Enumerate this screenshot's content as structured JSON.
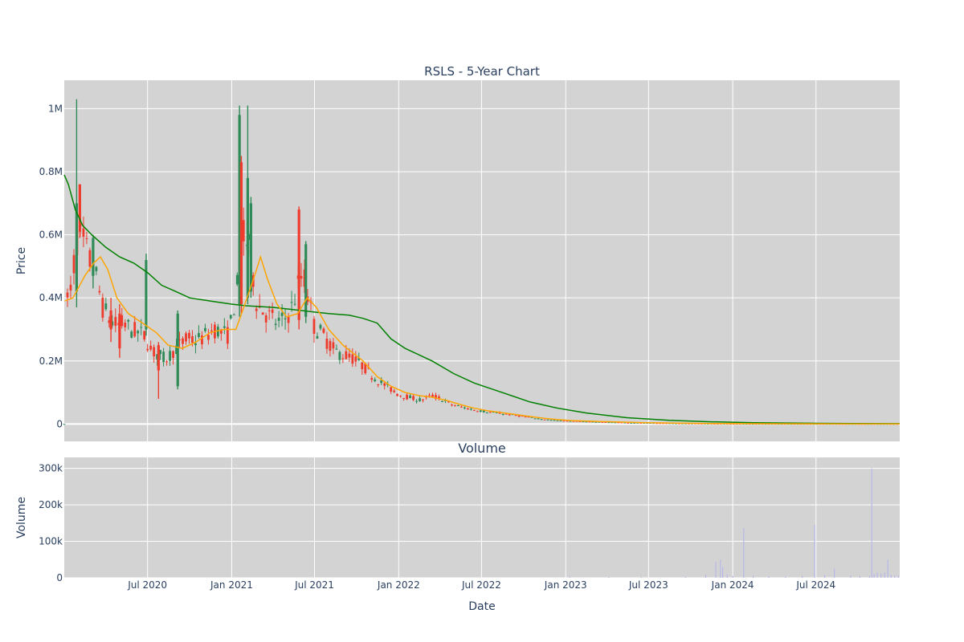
{
  "chart_data": [
    {
      "type": "candlestick",
      "title": "RSLS - 5-Year Chart",
      "ylabel": "Price",
      "ylim": [
        -55000,
        1090000
      ],
      "yticks": [
        {
          "value": 0,
          "label": "0"
        },
        {
          "value": 200000,
          "label": "0.2M"
        },
        {
          "value": 400000,
          "label": "0.4M"
        },
        {
          "value": 600000,
          "label": "0.6M"
        },
        {
          "value": 800000,
          "label": "0.8M"
        },
        {
          "value": 1000000,
          "label": "1M"
        }
      ],
      "grid": true,
      "colors": {
        "up": "#2e8b57",
        "down": "#ef3b2c",
        "ma_short": "#ffa500",
        "ma_long": "#008000",
        "plot_bg": "#d3d3d3"
      },
      "price_points": [
        [
          "2020-01-02",
          380000
        ],
        [
          "2020-01-15",
          420000
        ],
        [
          "2020-01-30",
          600000
        ],
        [
          "2020-02-10",
          580000
        ],
        [
          "2020-02-25",
          520000
        ],
        [
          "2020-03-10",
          470000
        ],
        [
          "2020-03-25",
          370000
        ],
        [
          "2020-04-10",
          330000
        ],
        [
          "2020-04-25",
          310000
        ],
        [
          "2020-05-10",
          320000
        ],
        [
          "2020-05-25",
          300000
        ],
        [
          "2020-06-10",
          290000
        ],
        [
          "2020-06-25",
          280000
        ],
        [
          "2020-07-10",
          230000
        ],
        [
          "2020-07-25",
          220000
        ],
        [
          "2020-08-10",
          205000
        ],
        [
          "2020-08-25",
          230000
        ],
        [
          "2020-09-10",
          250000
        ],
        [
          "2020-09-25",
          270000
        ],
        [
          "2020-10-10",
          265000
        ],
        [
          "2020-10-25",
          270000
        ],
        [
          "2020-11-10",
          285000
        ],
        [
          "2020-11-25",
          300000
        ],
        [
          "2020-12-10",
          290000
        ],
        [
          "2020-12-25",
          280000
        ],
        [
          "2021-01-15",
          450000
        ],
        [
          "2021-01-28",
          600000
        ],
        [
          "2021-02-10",
          550000
        ],
        [
          "2021-02-25",
          380000
        ],
        [
          "2021-03-10",
          360000
        ],
        [
          "2021-03-25",
          340000
        ],
        [
          "2021-04-10",
          320000
        ],
        [
          "2021-04-25",
          330000
        ],
        [
          "2021-05-10",
          360000
        ],
        [
          "2021-05-25",
          430000
        ],
        [
          "2021-06-05",
          480000
        ],
        [
          "2021-06-15",
          420000
        ],
        [
          "2021-06-30",
          310000
        ],
        [
          "2021-07-15",
          290000
        ],
        [
          "2021-07-30",
          260000
        ],
        [
          "2021-08-15",
          230000
        ],
        [
          "2021-08-30",
          220000
        ],
        [
          "2021-09-15",
          215000
        ],
        [
          "2021-09-30",
          200000
        ],
        [
          "2021-10-15",
          185000
        ],
        [
          "2021-10-30",
          160000
        ],
        [
          "2021-11-15",
          140000
        ],
        [
          "2021-11-30",
          125000
        ],
        [
          "2021-12-15",
          110000
        ],
        [
          "2021-12-30",
          95000
        ],
        [
          "2022-01-15",
          88000
        ],
        [
          "2022-01-30",
          82000
        ],
        [
          "2022-02-15",
          76000
        ],
        [
          "2022-02-28",
          80000
        ],
        [
          "2022-03-15",
          90000
        ],
        [
          "2022-03-30",
          82000
        ],
        [
          "2022-04-15",
          70000
        ],
        [
          "2022-04-30",
          60000
        ],
        [
          "2022-05-15",
          55000
        ],
        [
          "2022-05-30",
          50000
        ],
        [
          "2022-06-15",
          45000
        ],
        [
          "2022-06-30",
          42000
        ],
        [
          "2022-07-15",
          38000
        ],
        [
          "2022-07-30",
          36000
        ],
        [
          "2022-08-15",
          33000
        ],
        [
          "2022-08-30",
          30000
        ],
        [
          "2022-09-15",
          27000
        ],
        [
          "2022-09-30",
          24000
        ],
        [
          "2022-10-15",
          21000
        ],
        [
          "2022-10-30",
          18000
        ],
        [
          "2022-11-15",
          15000
        ],
        [
          "2022-11-30",
          12500
        ],
        [
          "2022-12-15",
          11000
        ],
        [
          "2022-12-30",
          10000
        ],
        [
          "2023-01-15",
          9000
        ],
        [
          "2023-02-15",
          8000
        ],
        [
          "2023-03-15",
          6500
        ],
        [
          "2023-04-15",
          5200
        ],
        [
          "2023-05-15",
          4300
        ],
        [
          "2023-06-15",
          3500
        ],
        [
          "2023-07-15",
          3000
        ],
        [
          "2023-08-15",
          2500
        ],
        [
          "2023-09-15",
          2100
        ],
        [
          "2023-10-15",
          1800
        ],
        [
          "2023-11-15",
          1500
        ],
        [
          "2023-12-15",
          1200
        ],
        [
          "2024-01-15",
          1000
        ],
        [
          "2024-02-15",
          900
        ],
        [
          "2024-03-15",
          800
        ],
        [
          "2024-04-15",
          700
        ],
        [
          "2024-05-15",
          650
        ],
        [
          "2024-06-15",
          600
        ],
        [
          "2024-07-15",
          550
        ],
        [
          "2024-08-15",
          500
        ],
        [
          "2024-09-15",
          450
        ],
        [
          "2024-10-15",
          400
        ],
        [
          "2024-11-15",
          350
        ],
        [
          "2024-12-15",
          300
        ],
        [
          "2024-12-31",
          280
        ]
      ],
      "spikes": [
        {
          "date": "2020-01-28",
          "high": 1030000,
          "low": 370000,
          "open": 420000,
          "close": 700000
        },
        {
          "date": "2020-02-04",
          "high": 760000,
          "low": 590000,
          "open": 760000,
          "close": 610000
        },
        {
          "date": "2020-03-04",
          "high": 600000,
          "low": 430000,
          "open": 470000,
          "close": 590000
        },
        {
          "date": "2020-04-12",
          "high": 400000,
          "low": 260000,
          "open": 360000,
          "close": 300000
        },
        {
          "date": "2020-05-01",
          "high": 380000,
          "low": 210000,
          "open": 350000,
          "close": 240000
        },
        {
          "date": "2020-06-28",
          "high": 540000,
          "low": 280000,
          "open": 300000,
          "close": 520000
        },
        {
          "date": "2020-07-25",
          "high": 260000,
          "low": 80000,
          "open": 250000,
          "close": 170000
        },
        {
          "date": "2020-09-05",
          "high": 360000,
          "low": 110000,
          "open": 120000,
          "close": 350000
        },
        {
          "date": "2021-01-18",
          "high": 1010000,
          "low": 340000,
          "open": 380000,
          "close": 980000
        },
        {
          "date": "2021-01-22",
          "high": 850000,
          "low": 350000,
          "open": 830000,
          "close": 380000
        },
        {
          "date": "2021-02-05",
          "high": 1010000,
          "low": 380000,
          "open": 400000,
          "close": 780000
        },
        {
          "date": "2021-02-12",
          "high": 720000,
          "low": 400000,
          "open": 420000,
          "close": 700000
        },
        {
          "date": "2021-05-28",
          "high": 690000,
          "low": 300000,
          "open": 680000,
          "close": 330000
        },
        {
          "date": "2021-06-12",
          "high": 580000,
          "low": 320000,
          "open": 340000,
          "close": 570000
        }
      ],
      "ma_short": [
        [
          "2020-01-02",
          390000
        ],
        [
          "2020-01-20",
          400000
        ],
        [
          "2020-02-15",
          470000
        ],
        [
          "2020-03-05",
          510000
        ],
        [
          "2020-03-20",
          530000
        ],
        [
          "2020-04-05",
          490000
        ],
        [
          "2020-04-25",
          400000
        ],
        [
          "2020-05-20",
          350000
        ],
        [
          "2020-06-20",
          320000
        ],
        [
          "2020-07-20",
          290000
        ],
        [
          "2020-08-15",
          250000
        ],
        [
          "2020-09-15",
          240000
        ],
        [
          "2020-10-15",
          260000
        ],
        [
          "2020-11-15",
          290000
        ],
        [
          "2020-12-15",
          300000
        ],
        [
          "2021-01-10",
          300000
        ],
        [
          "2021-01-25",
          360000
        ],
        [
          "2021-02-20",
          470000
        ],
        [
          "2021-03-05",
          530000
        ],
        [
          "2021-03-20",
          460000
        ],
        [
          "2021-04-10",
          380000
        ],
        [
          "2021-05-01",
          340000
        ],
        [
          "2021-05-25",
          350000
        ],
        [
          "2021-06-15",
          400000
        ],
        [
          "2021-07-05",
          370000
        ],
        [
          "2021-08-01",
          300000
        ],
        [
          "2021-09-01",
          250000
        ],
        [
          "2021-10-15",
          200000
        ],
        [
          "2021-11-15",
          150000
        ],
        [
          "2021-12-15",
          120000
        ],
        [
          "2022-01-15",
          100000
        ],
        [
          "2022-02-15",
          90000
        ],
        [
          "2022-03-15",
          85000
        ],
        [
          "2022-04-15",
          75000
        ],
        [
          "2022-05-15",
          62000
        ],
        [
          "2022-06-15",
          50000
        ],
        [
          "2022-07-15",
          42000
        ],
        [
          "2022-08-15",
          36000
        ],
        [
          "2022-09-15",
          30000
        ],
        [
          "2022-10-15",
          24000
        ],
        [
          "2022-11-15",
          18000
        ],
        [
          "2022-12-15",
          14000
        ],
        [
          "2023-01-15",
          11000
        ],
        [
          "2023-03-15",
          8000
        ],
        [
          "2023-06-15",
          4500
        ],
        [
          "2023-09-15",
          2500
        ],
        [
          "2023-12-15",
          1500
        ],
        [
          "2024-03-15",
          1000
        ],
        [
          "2024-06-15",
          700
        ],
        [
          "2024-09-15",
          500
        ],
        [
          "2024-12-31",
          350
        ]
      ],
      "ma_long": [
        [
          "2020-01-01",
          790000
        ],
        [
          "2020-01-10",
          760000
        ],
        [
          "2020-01-25",
          680000
        ],
        [
          "2020-02-10",
          630000
        ],
        [
          "2020-03-01",
          600000
        ],
        [
          "2020-04-01",
          560000
        ],
        [
          "2020-05-01",
          530000
        ],
        [
          "2020-06-01",
          510000
        ],
        [
          "2020-07-01",
          480000
        ],
        [
          "2020-08-01",
          440000
        ],
        [
          "2020-09-01",
          420000
        ],
        [
          "2020-10-01",
          400000
        ],
        [
          "2020-11-15",
          390000
        ],
        [
          "2021-01-01",
          380000
        ],
        [
          "2021-02-01",
          375000
        ],
        [
          "2021-04-01",
          370000
        ],
        [
          "2021-06-01",
          360000
        ],
        [
          "2021-07-01",
          355000
        ],
        [
          "2021-08-01",
          350000
        ],
        [
          "2021-09-15",
          345000
        ],
        [
          "2021-10-15",
          335000
        ],
        [
          "2021-11-15",
          320000
        ],
        [
          "2021-12-15",
          270000
        ],
        [
          "2022-01-15",
          240000
        ],
        [
          "2022-03-15",
          200000
        ],
        [
          "2022-05-01",
          160000
        ],
        [
          "2022-06-15",
          130000
        ],
        [
          "2022-08-15",
          100000
        ],
        [
          "2022-10-15",
          70000
        ],
        [
          "2022-12-15",
          50000
        ],
        [
          "2023-02-15",
          35000
        ],
        [
          "2023-05-15",
          20000
        ],
        [
          "2023-08-15",
          12000
        ],
        [
          "2023-11-15",
          7000
        ],
        [
          "2024-02-15",
          4000
        ],
        [
          "2024-06-15",
          2500
        ],
        [
          "2024-09-15",
          1800
        ],
        [
          "2024-12-31",
          1200
        ]
      ]
    },
    {
      "type": "bar",
      "title": "Volume",
      "xlabel": "Date",
      "ylabel": "Volume",
      "ylim": [
        0,
        330000
      ],
      "yticks": [
        {
          "value": 0,
          "label": "0"
        },
        {
          "value": 100000,
          "label": "100k"
        },
        {
          "value": 200000,
          "label": "200k"
        },
        {
          "value": 300000,
          "label": "300k"
        }
      ],
      "xlim": [
        "2020-01-01",
        "2024-12-31"
      ],
      "xticks": [
        {
          "value": "2020-07-01",
          "label": "Jul 2020"
        },
        {
          "value": "2021-01-01",
          "label": "Jan 2021"
        },
        {
          "value": "2021-07-01",
          "label": "Jul 2021"
        },
        {
          "value": "2022-01-01",
          "label": "Jan 2022"
        },
        {
          "value": "2022-07-01",
          "label": "Jul 2022"
        },
        {
          "value": "2023-01-01",
          "label": "Jan 2023"
        },
        {
          "value": "2023-07-01",
          "label": "Jul 2023"
        },
        {
          "value": "2024-01-01",
          "label": "Jan 2024"
        },
        {
          "value": "2024-07-01",
          "label": "Jul 2024"
        }
      ],
      "bar_color": "#b8b8e8",
      "volumes": [
        [
          "2023-01-10",
          3000
        ],
        [
          "2023-04-05",
          2000
        ],
        [
          "2023-06-15",
          1500
        ],
        [
          "2023-09-20",
          2500
        ],
        [
          "2023-11-03",
          8000
        ],
        [
          "2023-11-25",
          45000
        ],
        [
          "2023-12-05",
          50000
        ],
        [
          "2023-12-10",
          30000
        ],
        [
          "2023-12-20",
          10000
        ],
        [
          "2024-01-01",
          5000
        ],
        [
          "2024-01-25",
          137000
        ],
        [
          "2024-02-15",
          6000
        ],
        [
          "2024-03-20",
          4000
        ],
        [
          "2024-04-25",
          3000
        ],
        [
          "2024-06-01",
          5000
        ],
        [
          "2024-06-28",
          145000
        ],
        [
          "2024-07-20",
          8000
        ],
        [
          "2024-08-10",
          25000
        ],
        [
          "2024-09-15",
          6000
        ],
        [
          "2024-10-05",
          5000
        ],
        [
          "2024-10-26",
          5000
        ],
        [
          "2024-10-31",
          300000
        ],
        [
          "2024-11-05",
          10000
        ],
        [
          "2024-11-12",
          15000
        ],
        [
          "2024-11-20",
          12000
        ],
        [
          "2024-11-28",
          15000
        ],
        [
          "2024-12-05",
          50000
        ],
        [
          "2024-12-12",
          8000
        ],
        [
          "2024-12-20",
          6000
        ],
        [
          "2024-12-28",
          5000
        ]
      ]
    }
  ]
}
